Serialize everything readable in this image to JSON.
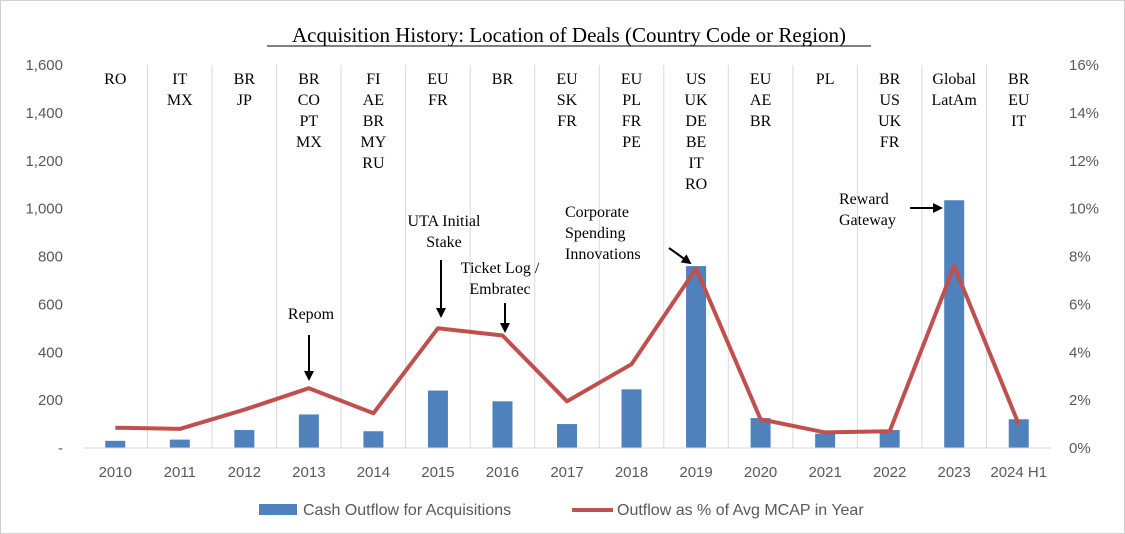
{
  "chart_data": {
    "type": "bar",
    "title": "Acquisition History: Location of Deals (Country Code or Region)",
    "categories": [
      "2010",
      "2011",
      "2012",
      "2013",
      "2014",
      "2015",
      "2016",
      "2017",
      "2018",
      "2019",
      "2020",
      "2021",
      "2022",
      "2023",
      "2024 H1"
    ],
    "series": [
      {
        "name": "Cash Outflow for Acquisitions",
        "type": "bar",
        "axis": "left",
        "color": "#4F81BD",
        "values": [
          30,
          35,
          75,
          140,
          70,
          240,
          195,
          100,
          245,
          760,
          125,
          60,
          75,
          1035,
          120
        ]
      },
      {
        "name": "Outflow as % of Avg MCAP in Year",
        "type": "line",
        "axis": "right",
        "color": "#C0504D",
        "values": [
          0.85,
          0.8,
          1.6,
          2.5,
          1.45,
          5.0,
          4.7,
          1.95,
          3.5,
          7.5,
          1.2,
          0.65,
          0.7,
          7.6,
          1.0
        ]
      }
    ],
    "y_left": {
      "ylim": [
        0,
        1600
      ],
      "ticks": [
        "-",
        "200",
        "400",
        "600",
        "800",
        "1,000",
        "1,200",
        "1,400",
        "1,600"
      ]
    },
    "y_right": {
      "ylim": [
        0,
        16
      ],
      "ticks": [
        "0%",
        "2%",
        "4%",
        "6%",
        "8%",
        "10%",
        "12%",
        "14%",
        "16%"
      ]
    },
    "country_codes": [
      [
        "RO"
      ],
      [
        "IT",
        "MX"
      ],
      [
        "BR",
        "JP"
      ],
      [
        "BR",
        "CO",
        "PT",
        "MX"
      ],
      [
        "FI",
        "AE",
        "BR",
        "MY",
        "RU"
      ],
      [
        "EU",
        "FR"
      ],
      [
        "BR"
      ],
      [
        "EU",
        "SK",
        "FR"
      ],
      [
        "EU",
        "PL",
        "FR",
        "PE"
      ],
      [
        "US",
        "UK",
        "DE",
        "BE",
        "IT",
        "RO"
      ],
      [
        "EU",
        "AE",
        "BR"
      ],
      [
        "PL"
      ],
      [
        "BR",
        "US",
        "UK",
        "FR"
      ],
      [
        "Global",
        "LatAm"
      ],
      [
        "BR",
        "EU",
        "IT"
      ]
    ],
    "annotations": [
      {
        "category": "2013",
        "lines": [
          "Repom"
        ]
      },
      {
        "category": "2015",
        "lines": [
          "UTA Initial",
          "Stake"
        ]
      },
      {
        "category": "2016",
        "lines": [
          "Ticket Log /",
          "Embratec"
        ]
      },
      {
        "category": "2019",
        "lines": [
          "Corporate",
          "Spending",
          "Innovations"
        ]
      },
      {
        "category": "2023",
        "lines": [
          "Reward",
          "Gateway"
        ]
      }
    ],
    "legend_position": "bottom",
    "grid": false
  }
}
